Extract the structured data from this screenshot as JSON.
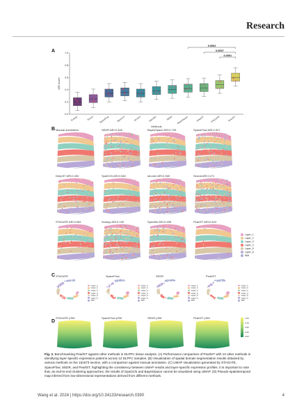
{
  "header": {
    "journal": "Research"
  },
  "panels": {
    "A": {
      "label": "A",
      "ylabel": "ARI score",
      "xlabel": "Methods",
      "yticks": [
        "0.0",
        "0.2",
        "0.4",
        "0.6",
        "0.8",
        "1.0"
      ],
      "methods": [
        "Scanpy",
        "Seurat",
        "SpaceFlow",
        "SpaGCN",
        "stLearn",
        "SpecMix",
        "SEDR",
        "BayesSpace",
        "DeepST",
        "STAGATE",
        "PearlST"
      ],
      "pvalues": [
        "0.0002",
        "0.0007",
        "0.0061"
      ]
    },
    "B": {
      "label": "B",
      "titles": [
        "Manual annotation",
        "SEDR ARI:0.446",
        "BayesSpace ARI:0.733",
        "SpaceFlow ARI:0.327",
        "DeepST ARI:0.494",
        "SpaGCN ARI:0.546",
        "stLearn ARI:0.369",
        "Seurat ARI:0.271",
        "STAGATE ARI:0.581",
        "Scanpy ARI:0.199",
        "SpecMix ARI:0.458",
        "PearlST ARI:0.824"
      ],
      "legend": [
        "Layer_1",
        "Layer_2",
        "Layer_3",
        "Layer_4",
        "Layer_5",
        "Layer_6",
        "WM"
      ]
    },
    "C": {
      "label": "C",
      "titles": [
        "STAGATE",
        "SpaceFlow",
        "SEDR",
        "PearlST"
      ],
      "legend": [
        "Layer_1",
        "Layer_2",
        "Layer_3",
        "Layer_4",
        "Layer_5",
        "Layer_6",
        "WM"
      ]
    },
    "D": {
      "label": "D",
      "titles": [
        "STAGATE pSM",
        "SpaceFlow pSM",
        "SEDR pSM",
        "PearlST pSM"
      ],
      "colorbar_ticks": [
        "1.00",
        "0.75",
        "0.50",
        "0.25",
        "0.00"
      ]
    }
  },
  "caption": {
    "lead": "Fig. 2.",
    "text": " Benchmarking PearlST against other methods in DLPFC tissue analysis. (A) Performance comparison of PearlST with 10 other methods in identifying layer-specific expression patterns across 12 DLPFC samples. (B) Visualization of spatial domain segmentation results obtained by various methods on the 151673 section, with a comparison against manual annotation. (C) UMAP visualization generated by STAGATE, SpaceFlow, SEDR, and PearlST, highlighting the consistency between UMAP results and layer-specific expression profiles. It is important to note that, as end-to-end clustering approaches, the results of SpaGCN and BayesSpace cannot be visualized using UMAP. (D) Pseudo-spatiotemporal map inferred from low-dimensional representations derived from different methods."
  },
  "footer": {
    "citation": "Wang et al. 2024 | https://doi.org/10.34133/research.0390",
    "page": "4"
  },
  "colors": {
    "layer_1": "#e8a0c0",
    "layer_2": "#f0c890",
    "layer_3": "#8fd0c0",
    "layer_4": "#f07870",
    "layer_5": "#d8c8a8",
    "layer_6": "#b8a8d8",
    "wm": "#a8b0d0"
  }
}
